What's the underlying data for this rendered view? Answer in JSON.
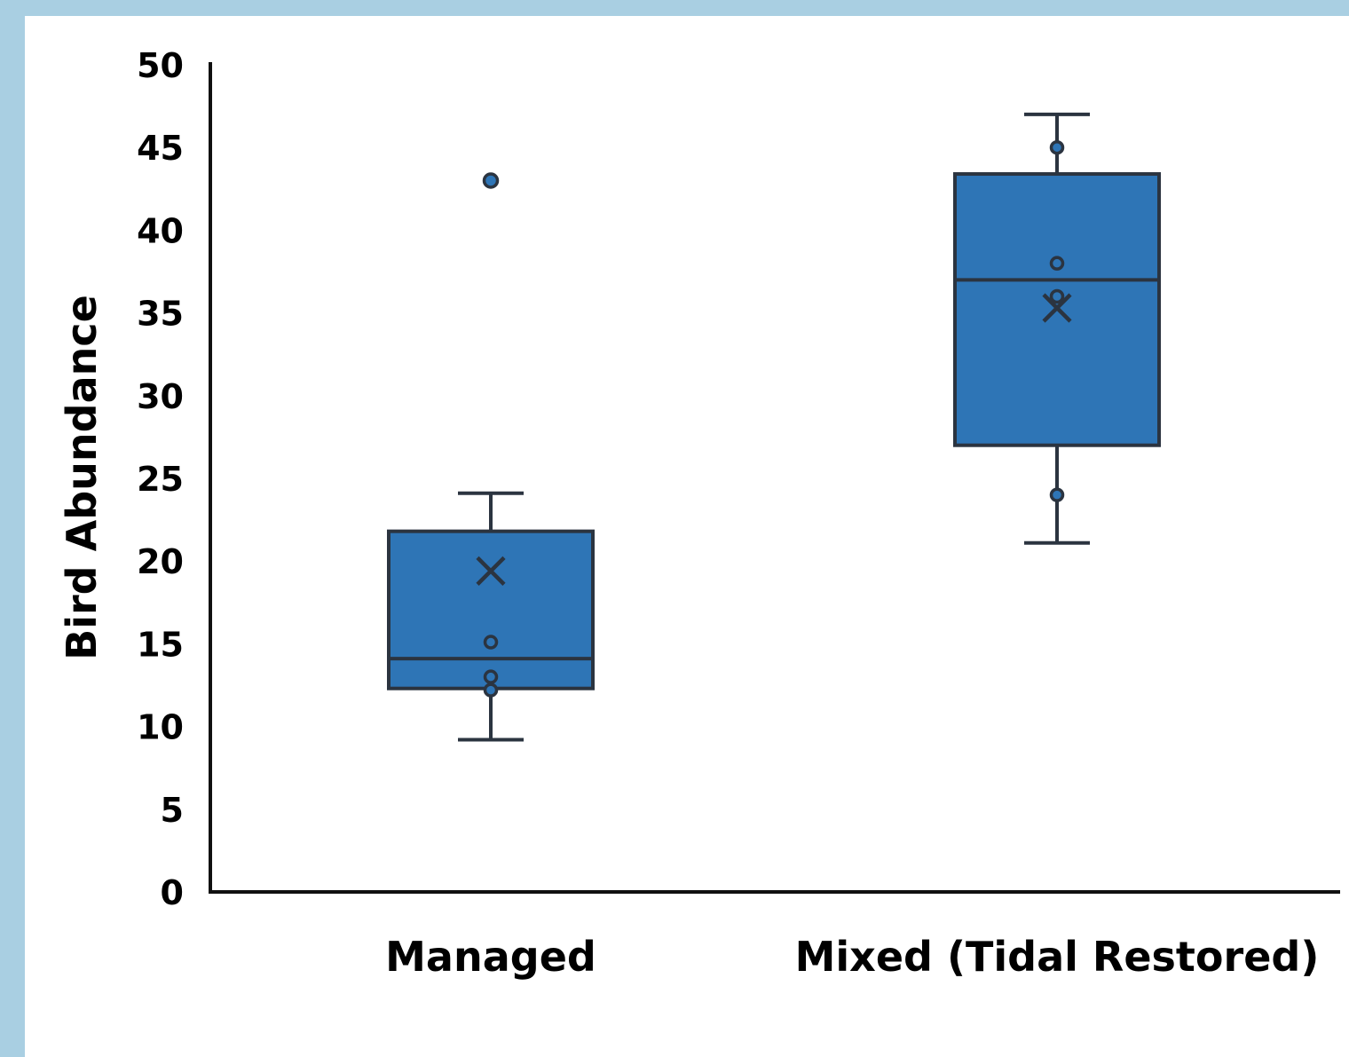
{
  "chart_data": {
    "type": "box",
    "title": "",
    "xlabel": "",
    "ylabel": "Bird Abundance",
    "ylim": [
      0,
      50
    ],
    "yticks": [
      "0",
      "5",
      "10",
      "15",
      "20",
      "25",
      "30",
      "35",
      "40",
      "45",
      "50"
    ],
    "categories": [
      "Managed",
      "Mixed (Tidal Restored)"
    ],
    "grid": false,
    "legend": "none",
    "colors": {
      "box_fill": "#2e75b6",
      "box_stroke": "#2b3440",
      "axis": "#111111",
      "background": "#a9cfe2"
    },
    "boxes": [
      {
        "category": "Managed",
        "whisker_low": 9.2,
        "q1": 12.3,
        "median": 14.1,
        "q3": 21.8,
        "whisker_high": 24.1,
        "mean": 19.4,
        "points": [
          12.2,
          13.0,
          15.1
        ],
        "outliers": [
          43.0
        ]
      },
      {
        "category": "Mixed (Tidal Restored)",
        "whisker_low": 21.1,
        "q1": 27.0,
        "median": 37.0,
        "q3": 43.4,
        "whisker_high": 47.0,
        "mean": 35.3,
        "points": [
          24.0,
          36.0,
          38.0,
          45.0
        ],
        "outliers": []
      }
    ]
  }
}
